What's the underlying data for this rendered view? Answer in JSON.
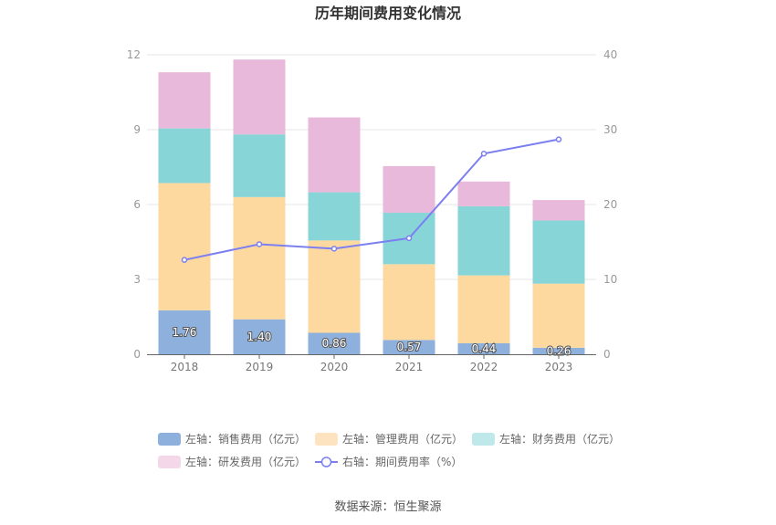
{
  "chart_data": {
    "type": "bar",
    "title": "历年期间费用变化情况",
    "categories": [
      "2018",
      "2019",
      "2020",
      "2021",
      "2022",
      "2023"
    ],
    "series": [
      {
        "name": "左轴：销售费用（亿元）",
        "axis": "left",
        "kind": "stacked-bar",
        "color": "#8eb0dc",
        "values": [
          1.76,
          1.4,
          0.86,
          0.57,
          0.44,
          0.26
        ]
      },
      {
        "name": "左轴：管理费用（亿元）",
        "axis": "left",
        "kind": "stacked-bar",
        "color": "#fdd9a0",
        "values": [
          5.1,
          4.9,
          3.7,
          3.04,
          2.72,
          2.57
        ]
      },
      {
        "name": "左轴：财务费用（亿元）",
        "axis": "left",
        "kind": "stacked-bar",
        "color": "#88d5d8",
        "values": [
          2.19,
          2.51,
          1.93,
          2.06,
          2.77,
          2.53
        ]
      },
      {
        "name": "左轴：研发费用（亿元）",
        "axis": "left",
        "kind": "stacked-bar",
        "color": "#e8b9da",
        "values": [
          2.25,
          3.0,
          3.0,
          1.87,
          0.99,
          0.82
        ]
      },
      {
        "name": "右轴：期间费用率（%）",
        "axis": "right",
        "kind": "line",
        "color": "#7b7ff0",
        "values": [
          12.6,
          14.7,
          14.1,
          15.5,
          26.8,
          28.7
        ]
      }
    ],
    "data_labels": [
      "1.76",
      "1.40",
      "0.86",
      "0.57",
      "0.44",
      "0.26"
    ],
    "y_left": {
      "min": 0,
      "max": 12,
      "ticks": [
        "0",
        "3",
        "6",
        "9",
        "12"
      ]
    },
    "y_right": {
      "min": 0,
      "max": 40,
      "ticks": [
        "0",
        "10",
        "20",
        "30",
        "40"
      ]
    },
    "grid": true,
    "legend_position": "bottom"
  },
  "legend_swatch_colors": [
    "#8eb0dc",
    "#fde3c0",
    "#bfe8ea",
    "#f4d8ea"
  ],
  "source": "数据来源：恒生聚源"
}
